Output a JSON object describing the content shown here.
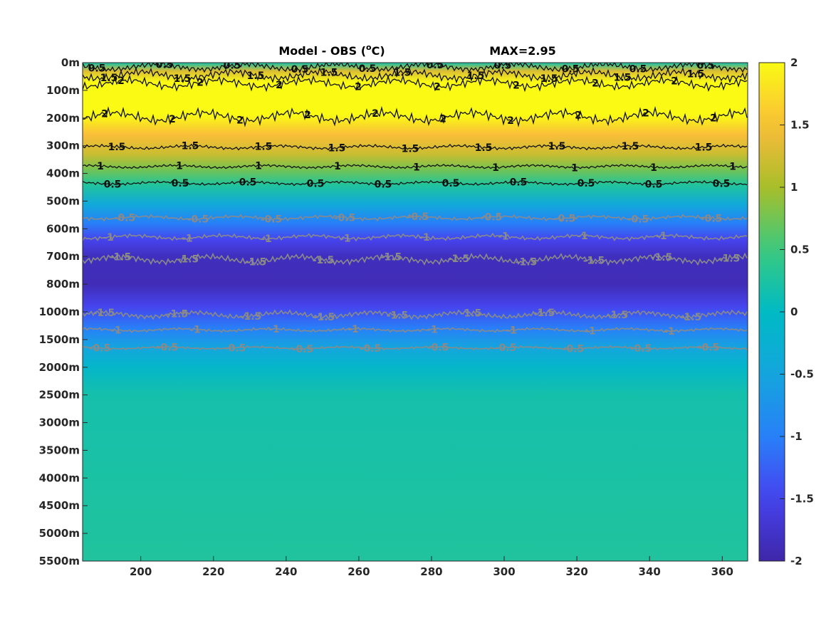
{
  "chart_data": {
    "type": "heatmap",
    "title": "Model - OBS (",
    "title_sup": "o",
    "title_unit": "C)",
    "max_label": "MAX=2.95",
    "x": {
      "range": [
        184,
        367
      ],
      "ticks": [
        200,
        220,
        240,
        260,
        280,
        300,
        320,
        340,
        360
      ],
      "tick_labels": [
        "200",
        "220",
        "240",
        "260",
        "280",
        "300",
        "320",
        "340",
        "360"
      ]
    },
    "y": {
      "scale": "categorical-depth",
      "tick_labels": [
        "0m",
        "100m",
        "200m",
        "300m",
        "400m",
        "500m",
        "600m",
        "700m",
        "800m",
        "1000m",
        "1500m",
        "2000m",
        "2500m",
        "3000m",
        "3500m",
        "4000m",
        "4500m",
        "5000m",
        "5500m"
      ]
    },
    "colorbar": {
      "range": [
        -2,
        2
      ],
      "ticks": [
        2,
        1.5,
        1,
        0.5,
        0,
        -0.5,
        -1,
        -1.5,
        -2
      ],
      "tick_labels": [
        "2",
        "1.5",
        "1",
        "0.5",
        "0",
        "-0.5",
        "-1",
        "-1.5",
        "-2"
      ],
      "colormap": "parula"
    },
    "profile": [
      {
        "level": 0,
        "value": 0.2
      },
      {
        "level": 0.3,
        "value": 1.3
      },
      {
        "level": 0.7,
        "value": 2.3
      },
      {
        "level": 1.3,
        "value": 2.6
      },
      {
        "level": 1.9,
        "value": 2.1
      },
      {
        "level": 2.6,
        "value": 1.5
      },
      {
        "level": 3.3,
        "value": 1.2
      },
      {
        "level": 3.8,
        "value": 0.8
      },
      {
        "level": 4.4,
        "value": 0.3
      },
      {
        "level": 5.1,
        "value": -0.4
      },
      {
        "level": 5.8,
        "value": -1.0
      },
      {
        "level": 6.4,
        "value": -1.5
      },
      {
        "level": 7.0,
        "value": -1.85
      },
      {
        "level": 8.0,
        "value": -1.9
      },
      {
        "level": 8.8,
        "value": -1.5
      },
      {
        "level": 9.6,
        "value": -1.0
      },
      {
        "level": 10.3,
        "value": -0.5
      },
      {
        "level": 11.0,
        "value": -0.1
      },
      {
        "level": 12.0,
        "value": 0.18
      },
      {
        "level": 18.0,
        "value": 0.28
      }
    ],
    "contours": [
      {
        "value": "0.5",
        "style": "black",
        "level": 0.15,
        "amplitude": 0.12
      },
      {
        "value": "1.5",
        "style": "black",
        "level": 0.45,
        "amplitude": 0.15
      },
      {
        "value": "2",
        "style": "black",
        "level": 0.75,
        "amplitude": 0.15
      },
      {
        "value": "2",
        "style": "black",
        "level": 1.95,
        "amplitude": 0.18
      },
      {
        "value": "1.5",
        "style": "black",
        "level": 3.05,
        "amplitude": 0.06
      },
      {
        "value": "1",
        "style": "black",
        "level": 3.75,
        "amplitude": 0.05
      },
      {
        "value": "0.5",
        "style": "black",
        "level": 4.35,
        "amplitude": 0.05
      },
      {
        "value": "-0.5",
        "style": "gray",
        "level": 5.6,
        "amplitude": 0.06
      },
      {
        "value": "-1",
        "style": "gray",
        "level": 6.3,
        "amplitude": 0.07
      },
      {
        "value": "-1.5",
        "style": "gray",
        "level": 7.1,
        "amplitude": 0.12
      },
      {
        "value": "-1.5",
        "style": "gray",
        "level": 9.1,
        "amplitude": 0.1
      },
      {
        "value": "-1",
        "style": "gray",
        "level": 9.65,
        "amplitude": 0.05
      },
      {
        "value": "-0.5",
        "style": "gray",
        "level": 10.3,
        "amplitude": 0.04
      }
    ]
  }
}
